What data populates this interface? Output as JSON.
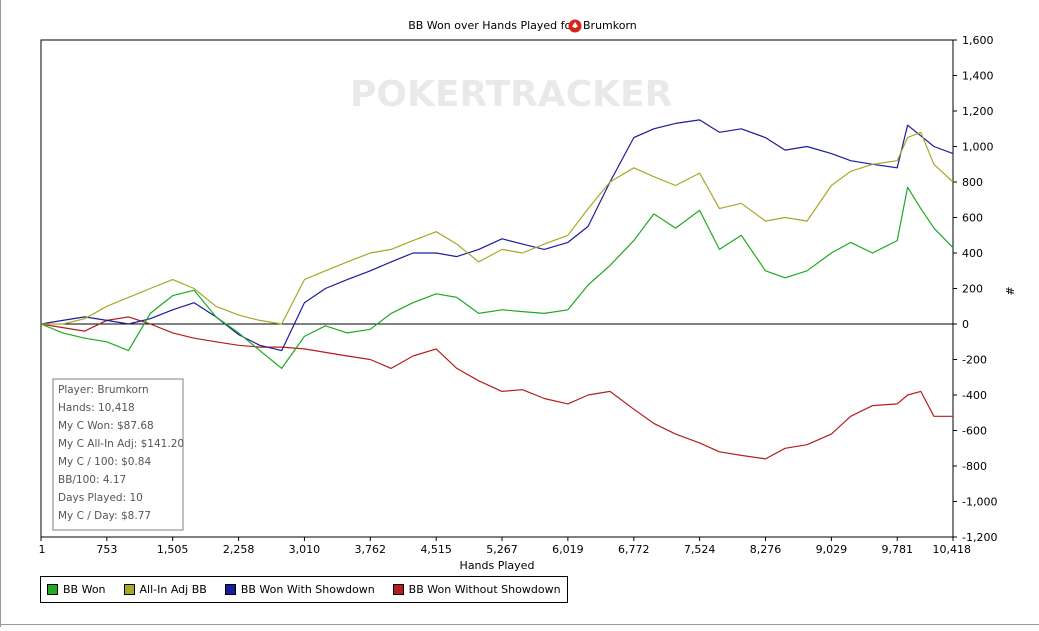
{
  "chart_data": {
    "type": "line",
    "title": "BB Won over Hands Played for",
    "player": "Brumkorn",
    "xlabel": "Hands Played",
    "ylabel": "#",
    "watermark": "POKERTRACKER",
    "xlim": [
      1,
      10418
    ],
    "ylim": [
      -1200,
      1600
    ],
    "x_ticks": [
      "1",
      "753",
      "1,505",
      "2,258",
      "3,010",
      "3,762",
      "4,515",
      "5,267",
      "6,019",
      "6,772",
      "7,524",
      "8,276",
      "9,029",
      "9,781",
      "10,418"
    ],
    "y_ticks": [
      "1,600",
      "1,400",
      "1,200",
      "1,000",
      "800",
      "600",
      "400",
      "200",
      "0",
      "-200",
      "-400",
      "-600",
      "-800",
      "-1,000",
      "-1,200"
    ],
    "grid": false,
    "legend_position": "bottom",
    "series": [
      {
        "name": "BB Won",
        "color": "#1faa1f",
        "x": [
          1,
          250,
          500,
          753,
          1000,
          1250,
          1505,
          1750,
          2000,
          2258,
          2500,
          2750,
          3010,
          3250,
          3500,
          3762,
          4000,
          4250,
          4515,
          4750,
          5000,
          5267,
          5500,
          5750,
          6019,
          6250,
          6500,
          6772,
          7000,
          7250,
          7524,
          7750,
          8000,
          8276,
          8500,
          8750,
          9029,
          9250,
          9500,
          9781,
          9900,
          10050,
          10200,
          10418
        ],
        "y": [
          0,
          -50,
          -80,
          -100,
          -150,
          60,
          160,
          190,
          40,
          -50,
          -150,
          -250,
          -70,
          -10,
          -50,
          -30,
          60,
          120,
          170,
          150,
          60,
          80,
          70,
          60,
          80,
          220,
          330,
          470,
          620,
          540,
          640,
          420,
          500,
          300,
          260,
          300,
          400,
          460,
          400,
          470,
          770,
          650,
          540,
          430
        ]
      },
      {
        "name": "All-In Adj BB",
        "color": "#a8a828",
        "x": [
          1,
          250,
          500,
          753,
          1000,
          1250,
          1505,
          1750,
          2000,
          2258,
          2500,
          2750,
          3010,
          3250,
          3500,
          3762,
          4000,
          4250,
          4515,
          4750,
          5000,
          5267,
          5500,
          5750,
          6019,
          6250,
          6500,
          6772,
          7000,
          7250,
          7524,
          7750,
          8000,
          8276,
          8500,
          8750,
          9029,
          9250,
          9500,
          9781,
          9900,
          10050,
          10200,
          10418
        ],
        "y": [
          0,
          0,
          30,
          100,
          150,
          200,
          250,
          200,
          100,
          50,
          20,
          0,
          250,
          300,
          350,
          400,
          420,
          470,
          520,
          450,
          350,
          420,
          400,
          450,
          500,
          650,
          800,
          880,
          830,
          780,
          850,
          650,
          680,
          580,
          600,
          580,
          780,
          860,
          900,
          920,
          1050,
          1080,
          900,
          800
        ]
      },
      {
        "name": "BB Won With Showdown",
        "color": "#1c1c9e",
        "x": [
          1,
          250,
          500,
          753,
          1000,
          1250,
          1505,
          1750,
          2000,
          2258,
          2500,
          2750,
          3010,
          3250,
          3500,
          3762,
          4000,
          4250,
          4515,
          4750,
          5000,
          5267,
          5500,
          5750,
          6019,
          6250,
          6500,
          6772,
          7000,
          7250,
          7524,
          7750,
          8000,
          8276,
          8500,
          8750,
          9029,
          9250,
          9500,
          9781,
          9900,
          10050,
          10200,
          10418
        ],
        "y": [
          0,
          20,
          40,
          20,
          0,
          30,
          80,
          120,
          40,
          -60,
          -120,
          -150,
          120,
          200,
          250,
          300,
          350,
          400,
          400,
          380,
          420,
          480,
          450,
          420,
          460,
          550,
          800,
          1050,
          1100,
          1130,
          1150,
          1080,
          1100,
          1050,
          980,
          1000,
          960,
          920,
          900,
          880,
          1120,
          1060,
          1000,
          960
        ]
      },
      {
        "name": "BB Won Without Showdown",
        "color": "#b51e1e",
        "x": [
          1,
          250,
          500,
          753,
          1000,
          1250,
          1505,
          1750,
          2000,
          2258,
          2500,
          2750,
          3010,
          3250,
          3500,
          3762,
          4000,
          4250,
          4515,
          4750,
          5000,
          5267,
          5500,
          5750,
          6019,
          6250,
          6500,
          6772,
          7000,
          7250,
          7524,
          7750,
          8000,
          8276,
          8500,
          8750,
          9029,
          9250,
          9500,
          9781,
          9900,
          10050,
          10200,
          10418
        ],
        "y": [
          0,
          -20,
          -40,
          20,
          40,
          0,
          -50,
          -80,
          -100,
          -120,
          -130,
          -130,
          -140,
          -160,
          -180,
          -200,
          -250,
          -180,
          -140,
          -250,
          -320,
          -380,
          -370,
          -420,
          -450,
          -400,
          -380,
          -480,
          -560,
          -620,
          -670,
          -720,
          -740,
          -760,
          -700,
          -680,
          -620,
          -520,
          -460,
          -450,
          -400,
          -380,
          -520,
          -520
        ]
      }
    ],
    "stats_box": [
      "Player: Brumkorn",
      "Hands: 10,418",
      "My C Won: $87.68",
      "My C All-In Adj: $141.20",
      "My C / 100: $0.84",
      "BB/100: 4.17",
      "Days Played: 10",
      "My C / Day: $8.77"
    ]
  },
  "legend": [
    {
      "label": "BB Won",
      "color": "#1faa1f"
    },
    {
      "label": "All-In Adj BB",
      "color": "#a8a828"
    },
    {
      "label": "BB Won With Showdown",
      "color": "#1c1c9e"
    },
    {
      "label": "BB Won Without Showdown",
      "color": "#b51e1e"
    }
  ]
}
